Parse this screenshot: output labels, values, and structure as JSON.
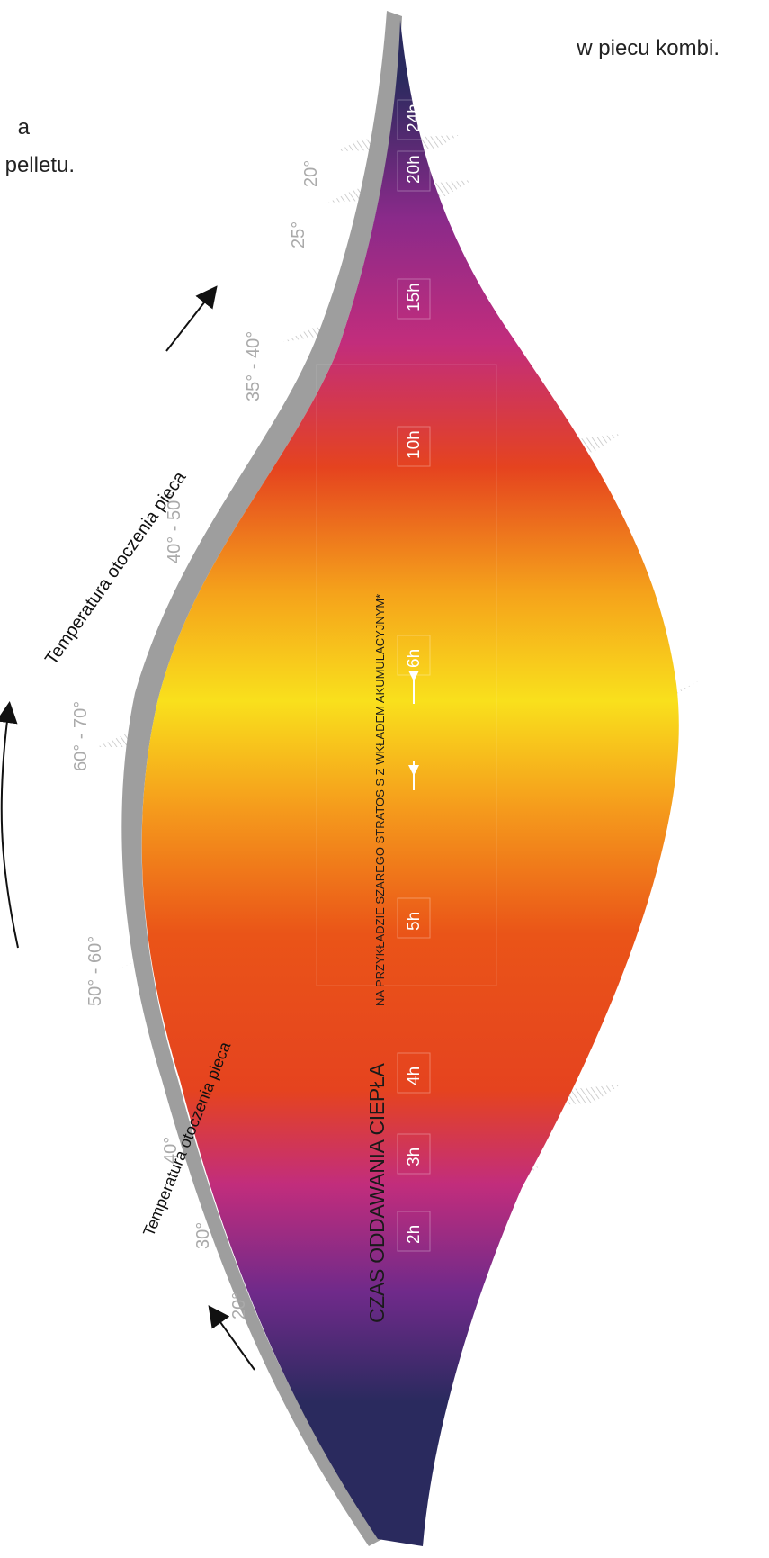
{
  "intro": {
    "line1": "w piecu kombi.",
    "line2": "a",
    "line3": "pelletu."
  },
  "diagram": {
    "title": "CZAS ODDAWANIA CIEPŁA",
    "subtitle": "NA PRZYKŁADZIE SZAREGO STRATOS S Z WKŁADEM AKUMULACYJNYM*",
    "curve_label_heating": "Temperatura otoczenia pieca",
    "curve_label_cooling": "Temperatura otoczenia pieca",
    "rising_temperatures": [
      "20°",
      "30°",
      "40°",
      "50° - 60°"
    ],
    "falling_temperatures": [
      "60° - 70°",
      "40° - 50°",
      "35° - 40°",
      "25°",
      "20°"
    ],
    "time_marks_rising": [
      "2h",
      "3h",
      "4h",
      "5h"
    ],
    "time_marks_falling": [
      "6h",
      "10h",
      "15h",
      "20h",
      "24h"
    ],
    "colors": {
      "cool": "#2a2a5e",
      "violet": "#6f2a8a",
      "magenta": "#c22d7c",
      "red": "#e5431f",
      "orange": "#f0781a",
      "amber": "#f5a21b",
      "yellow": "#f9e01c",
      "shell": "#9e9e9e",
      "label": "#aaaaaa",
      "arrow": "#111111"
    }
  }
}
